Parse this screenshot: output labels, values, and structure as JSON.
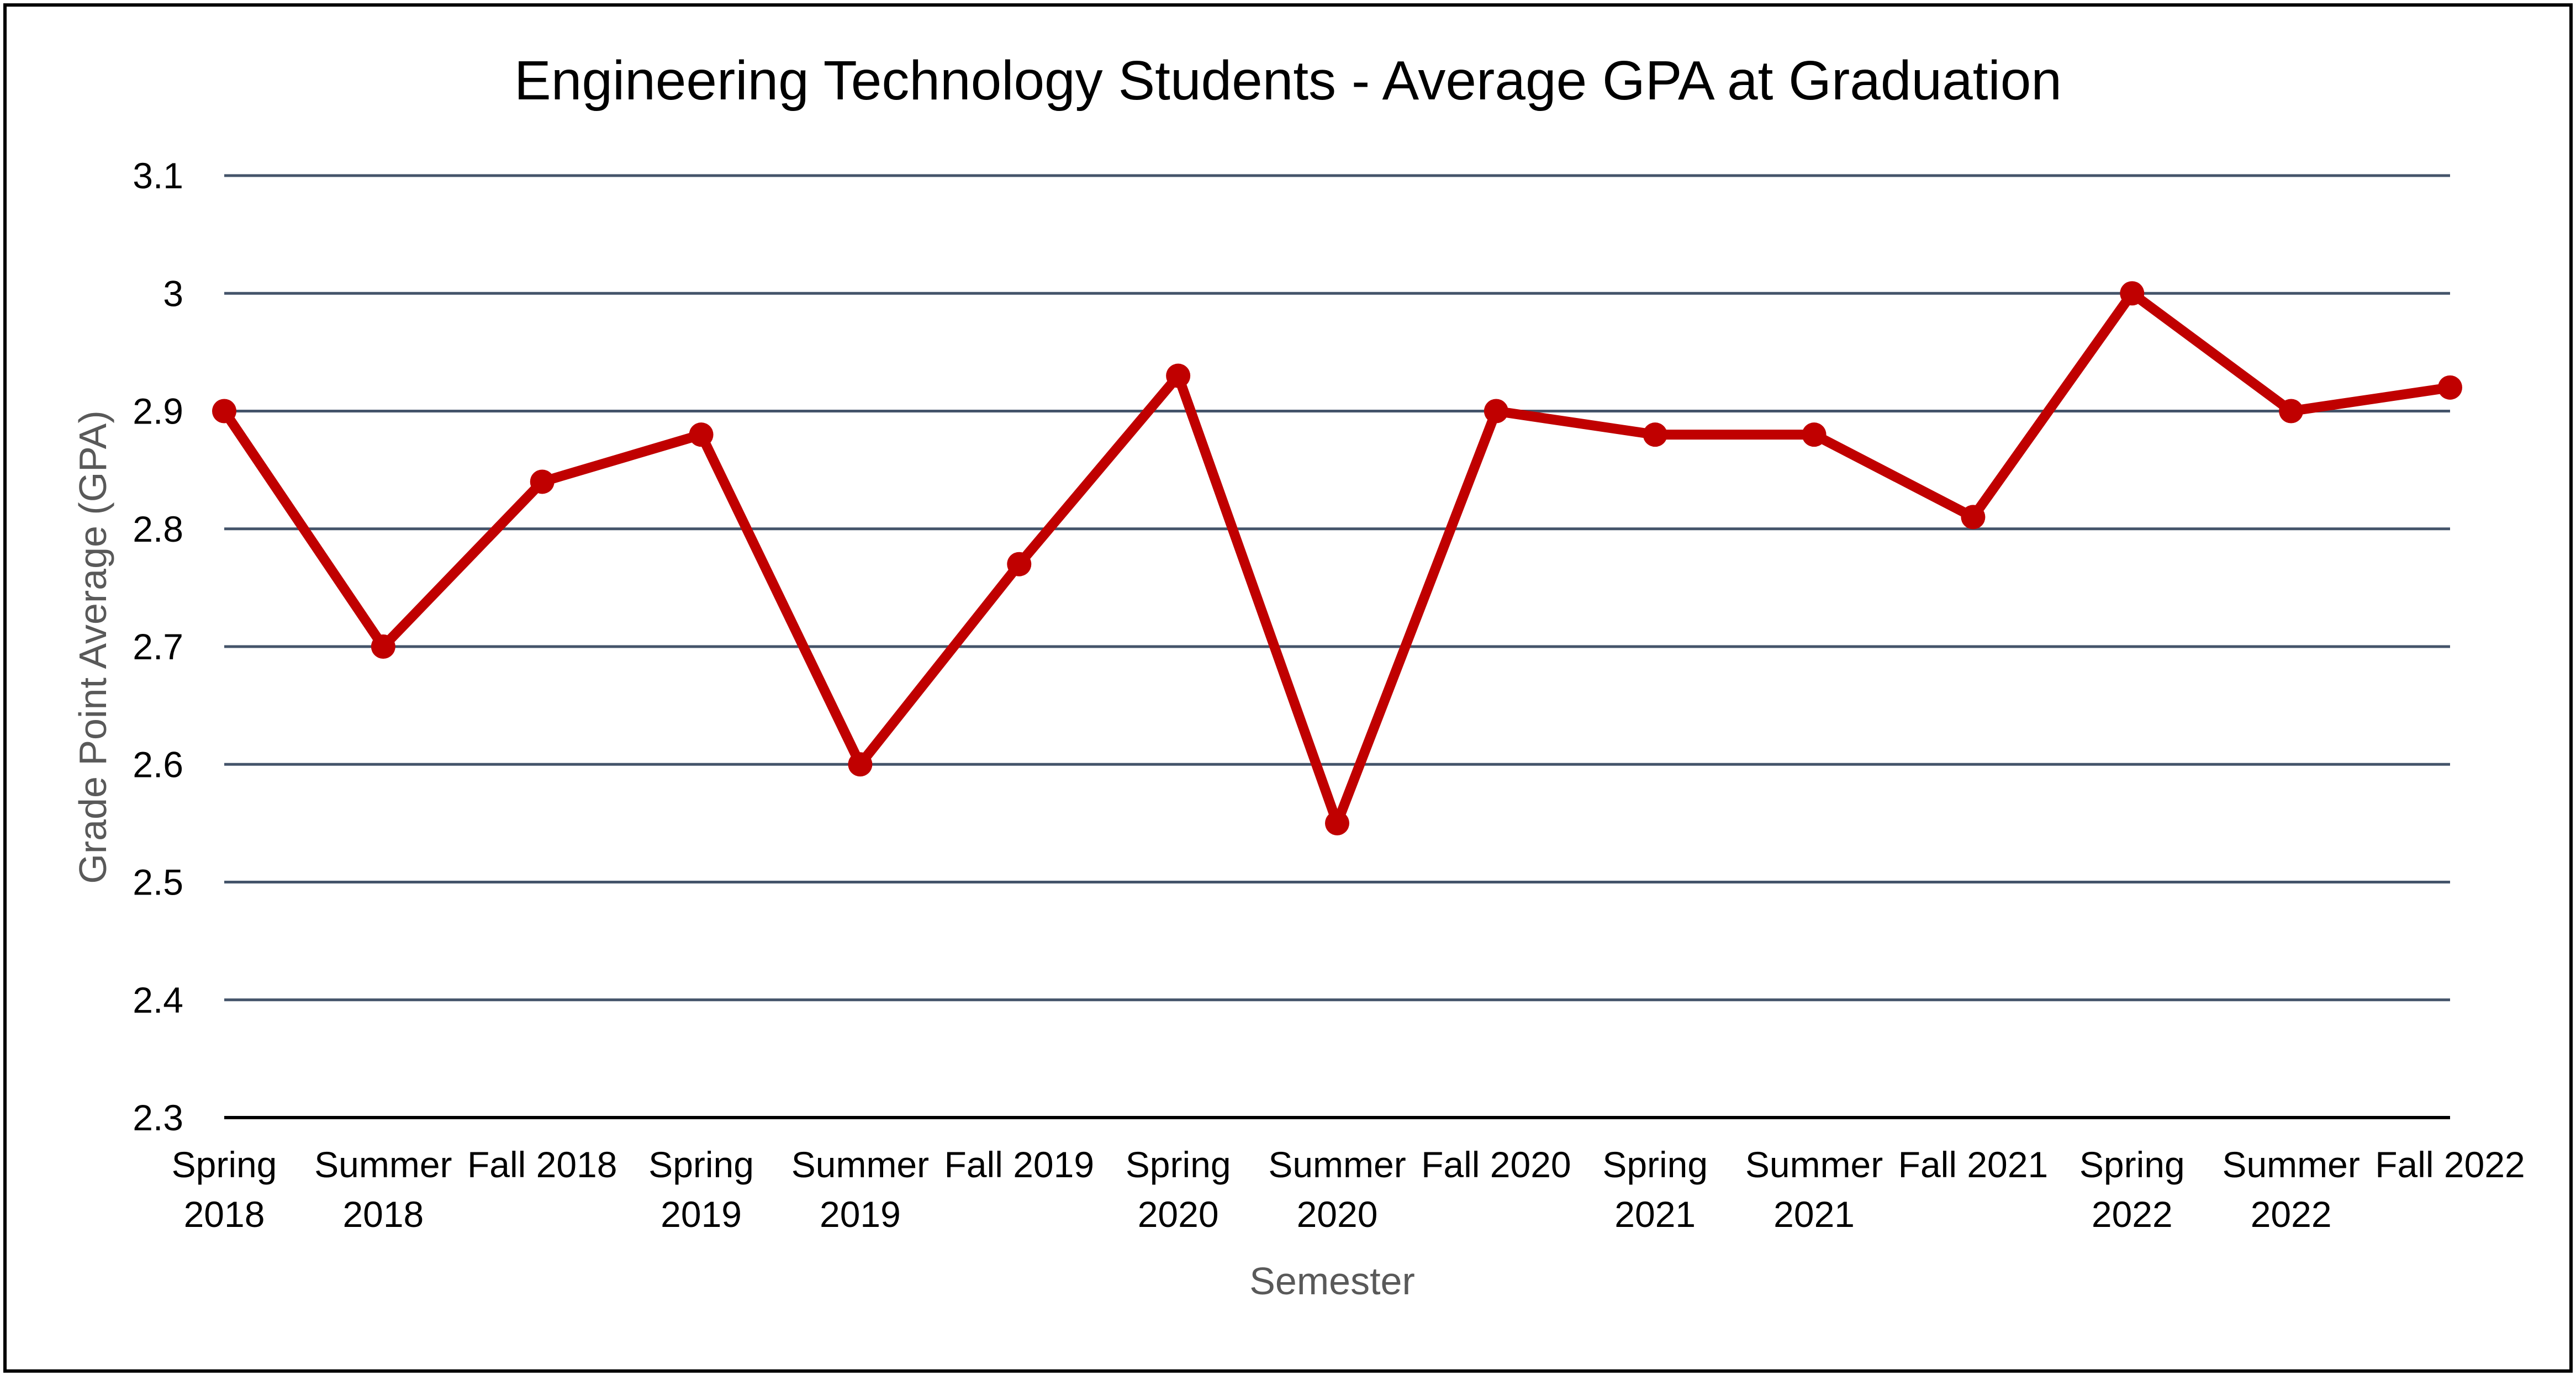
{
  "chart_data": {
    "type": "line",
    "title": "Engineering Technology Students - Average GPA at Graduation",
    "xlabel": "Semester",
    "ylabel": "Grade Point Average (GPA)",
    "ylim": [
      2.3,
      3.1
    ],
    "yticks": [
      "3.1",
      "3",
      "2.9",
      "2.8",
      "2.7",
      "2.6",
      "2.5",
      "2.4",
      "2.3"
    ],
    "ytick_values": [
      3.1,
      3.0,
      2.9,
      2.8,
      2.7,
      2.6,
      2.5,
      2.4,
      2.3
    ],
    "grid": true,
    "legend": "none",
    "categories": [
      [
        "Spring",
        "2018"
      ],
      [
        "Summer",
        "2018"
      ],
      [
        "Fall 2018"
      ],
      [
        "Spring",
        "2019"
      ],
      [
        "Summer",
        "2019"
      ],
      [
        "Fall 2019"
      ],
      [
        "Spring",
        "2020"
      ],
      [
        "Summer",
        "2020"
      ],
      [
        "Fall 2020"
      ],
      [
        "Spring",
        "2021"
      ],
      [
        "Summer",
        "2021"
      ],
      [
        "Fall 2021"
      ],
      [
        "Spring",
        "2022"
      ],
      [
        "Summer",
        "2022"
      ],
      [
        "Fall 2022"
      ]
    ],
    "series": [
      {
        "values": [
          2.9,
          2.7,
          2.84,
          2.88,
          2.6,
          2.77,
          2.93,
          2.55,
          2.9,
          2.88,
          2.88,
          2.81,
          3.0,
          2.9,
          2.92
        ],
        "color": "#C00000"
      }
    ],
    "colors": {
      "gridline": "#44546A",
      "axis_line": "#000000",
      "axis_title": "#595959",
      "text": "#000000"
    }
  }
}
